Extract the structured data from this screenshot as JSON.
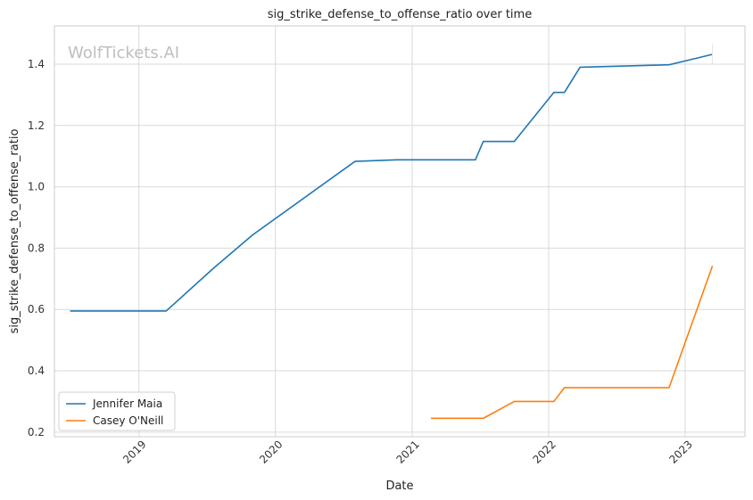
{
  "chart_data": {
    "type": "line",
    "title": "sig_strike_defense_to_offense_ratio over time",
    "xlabel": "Date",
    "ylabel": "sig_strike_defense_to_offense_ratio",
    "watermark": "WolfTickets.AI",
    "xlim": [
      "2018-05-20",
      "2023-06-10"
    ],
    "ylim": [
      0.185,
      1.525
    ],
    "x_ticks": [
      "2019",
      "2020",
      "2021",
      "2022",
      "2023"
    ],
    "y_ticks": [
      0.2,
      0.4,
      0.6,
      0.8,
      1.0,
      1.2,
      1.4
    ],
    "y_tick_labels": [
      "0.2",
      "0.4",
      "0.6",
      "0.8",
      "1.0",
      "1.2",
      "1.4"
    ],
    "grid": true,
    "legend_position": "lower-left",
    "series": [
      {
        "name": "Jennifer Maia",
        "color": "#1f77b4",
        "points": [
          [
            "2018-07-01",
            0.595
          ],
          [
            "2019-03-15",
            0.595
          ],
          [
            "2019-07-20",
            0.735
          ],
          [
            "2019-11-01",
            0.843
          ],
          [
            "2020-08-01",
            1.083
          ],
          [
            "2020-11-21",
            1.088
          ],
          [
            "2021-06-19",
            1.088
          ],
          [
            "2021-07-10",
            1.148
          ],
          [
            "2021-10-01",
            1.148
          ],
          [
            "2022-01-15",
            1.308
          ],
          [
            "2022-02-12",
            1.308
          ],
          [
            "2022-03-26",
            1.39
          ],
          [
            "2022-11-19",
            1.398
          ],
          [
            "2023-03-15",
            1.432
          ]
        ]
      },
      {
        "name": "Casey O'Neill",
        "color": "#ff7f0e",
        "points": [
          [
            "2021-02-20",
            0.245
          ],
          [
            "2021-07-10",
            0.245
          ],
          [
            "2021-10-01",
            0.3
          ],
          [
            "2022-01-15",
            0.3
          ],
          [
            "2022-02-12",
            0.345
          ],
          [
            "2022-11-19",
            0.345
          ],
          [
            "2023-03-15",
            0.742
          ]
        ]
      }
    ]
  }
}
